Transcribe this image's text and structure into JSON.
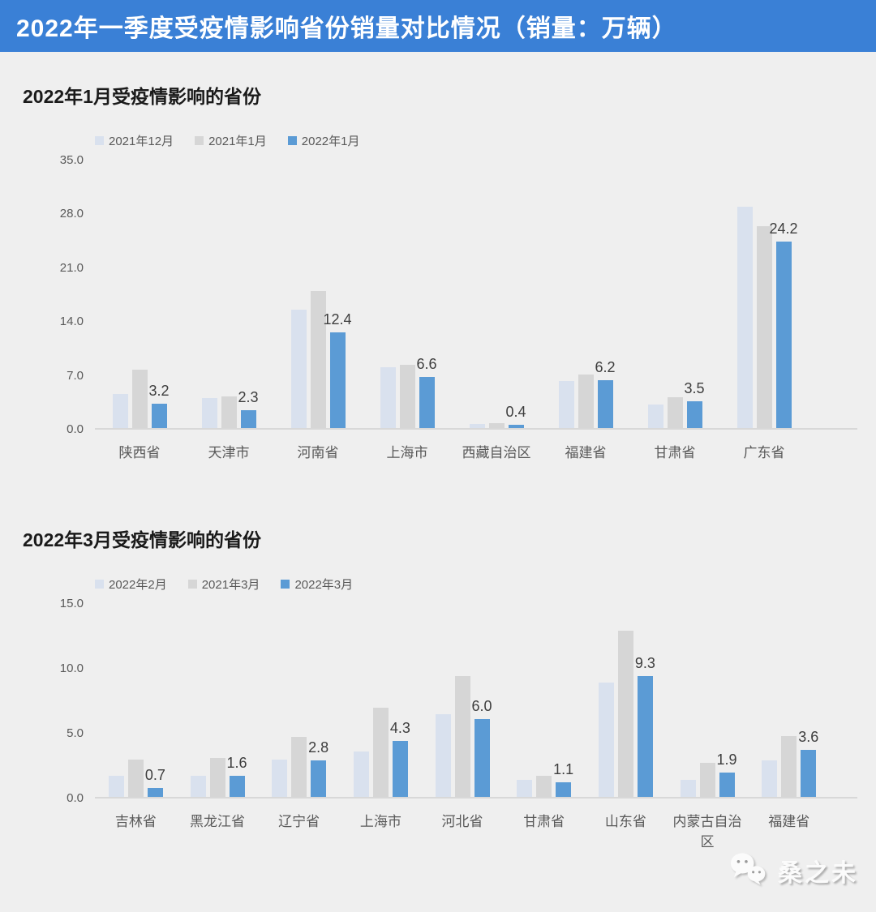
{
  "header": {
    "title": "2022年一季度受疫情影响省份销量对比情况（销量：万辆）",
    "bg_color": "#3a80d6",
    "text_color": "#ffffff"
  },
  "colors": {
    "background": "#efefef",
    "series_light_blue": "#d9e1ee",
    "series_gray": "#d6d6d6",
    "series_blue": "#5b9bd5",
    "axis_text": "#595959",
    "value_label_text": "#3d3d3d",
    "baseline": "#d8d8d8"
  },
  "chart_data": [
    {
      "type": "bar",
      "title": "2022年1月受疫情影响的省份",
      "categories": [
        "陕西省",
        "天津市",
        "河南省",
        "上海市",
        "西藏自治区",
        "福建省",
        "甘肃省",
        "广东省"
      ],
      "series": [
        {
          "name": "2021年12月",
          "color": "#d9e1ee",
          "data_labels": false,
          "values": [
            4.4,
            3.9,
            15.4,
            7.9,
            0.5,
            6.1,
            3.1,
            28.8
          ]
        },
        {
          "name": "2021年1月",
          "color": "#d6d6d6",
          "data_labels": false,
          "values": [
            7.6,
            4.1,
            17.8,
            8.2,
            0.6,
            7.0,
            4.0,
            26.3
          ]
        },
        {
          "name": "2022年1月",
          "color": "#5b9bd5",
          "data_labels": true,
          "values": [
            3.2,
            2.3,
            12.4,
            6.6,
            0.4,
            6.2,
            3.5,
            24.2
          ]
        }
      ],
      "ylim": [
        0,
        35
      ],
      "yticks": [
        "35.0",
        "28.0",
        "21.0",
        "14.0",
        "7.0",
        "0.0"
      ],
      "grid": false,
      "legend_position": "top-left"
    },
    {
      "type": "bar",
      "title": "2022年3月受疫情影响的省份",
      "categories": [
        "吉林省",
        "黑龙江省",
        "辽宁省",
        "上海市",
        "河北省",
        "甘肃省",
        "山东省",
        "内蒙古自治区",
        "福建省"
      ],
      "series": [
        {
          "name": "2022年2月",
          "color": "#d9e1ee",
          "data_labels": false,
          "values": [
            1.6,
            1.6,
            2.9,
            3.5,
            6.4,
            1.3,
            8.8,
            1.3,
            2.8
          ]
        },
        {
          "name": "2021年3月",
          "color": "#d6d6d6",
          "data_labels": false,
          "values": [
            2.9,
            3.0,
            4.6,
            6.9,
            9.3,
            1.6,
            12.8,
            2.6,
            4.7
          ]
        },
        {
          "name": "2022年3月",
          "color": "#5b9bd5",
          "data_labels": true,
          "values": [
            0.7,
            1.6,
            2.8,
            4.3,
            6.0,
            1.1,
            9.3,
            1.9,
            3.6
          ]
        }
      ],
      "ylim": [
        0,
        15
      ],
      "yticks": [
        "15.0",
        "10.0",
        "5.0",
        "0.0"
      ],
      "grid": false,
      "legend_position": "top-left"
    }
  ],
  "watermark": {
    "text": "桑之未",
    "icon": "wechat-icon"
  }
}
